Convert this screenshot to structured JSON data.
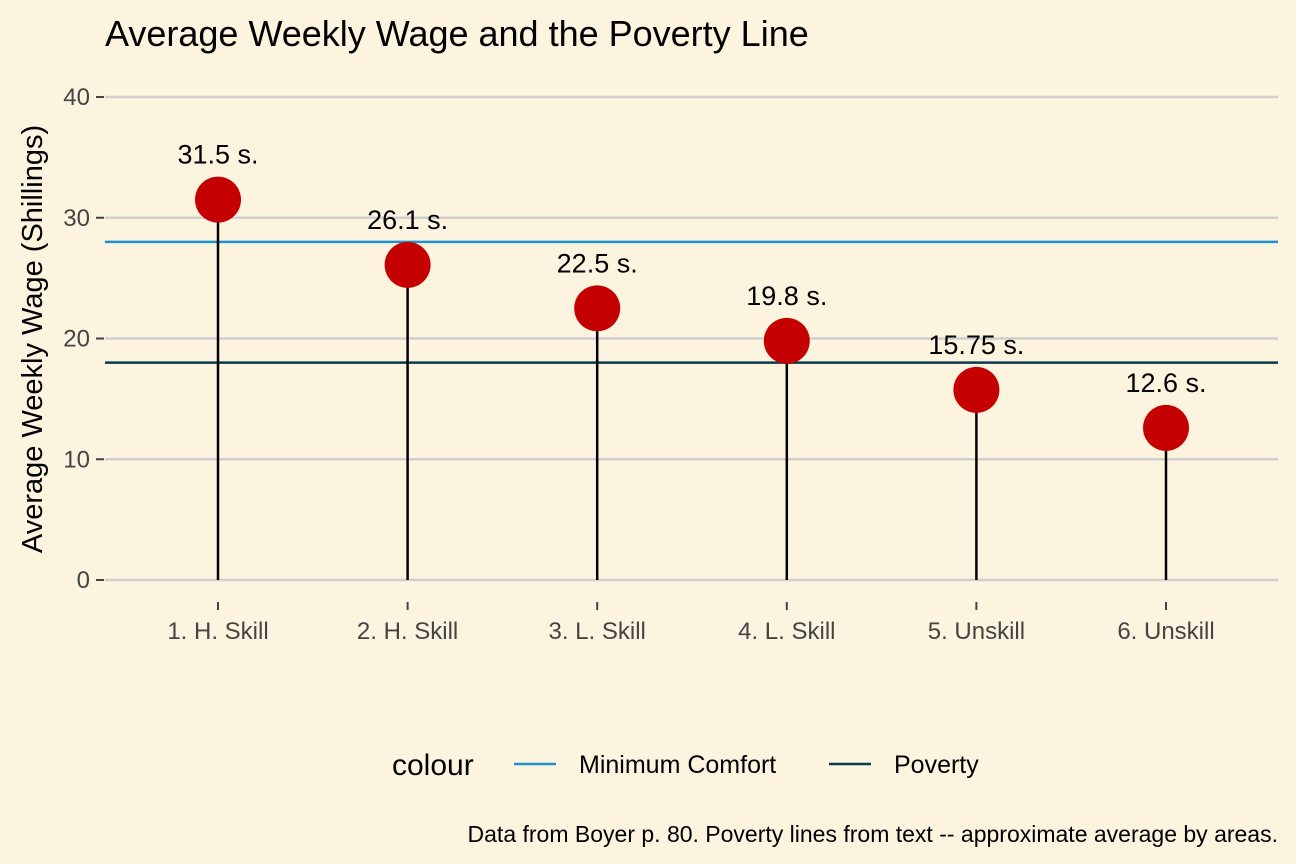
{
  "chart_data": {
    "type": "lollipop",
    "title": "Average Weekly Wage and the Poverty Line",
    "ylabel": "Average Weekly Wage (Shillings)",
    "xlabel": "",
    "ylim": [
      0,
      40
    ],
    "yticks": [
      0,
      10,
      20,
      30,
      40
    ],
    "grid": "horizontal",
    "categories": [
      "1. H. Skill",
      "2. H. Skill",
      "3. L. Skill",
      "4. L. Skill",
      "5. Unskill",
      "6. Unskill"
    ],
    "values": [
      31.5,
      26.1,
      22.5,
      19.8,
      15.75,
      12.6
    ],
    "data_labels": [
      "31.5 s.",
      "26.1 s.",
      "22.5 s.",
      "19.8 s.",
      "15.75 s.",
      "12.6 s."
    ],
    "point_color": "#c40000",
    "reference_lines": [
      {
        "name": "Minimum Comfort",
        "value": 28,
        "color": "#1f93d0"
      },
      {
        "name": "Poverty",
        "value": 18,
        "color": "#0a3a4e"
      }
    ],
    "legend": {
      "title": "colour",
      "position": "bottom"
    },
    "caption": "Data from Boyer p. 80. Poverty lines from text -- approximate average by areas."
  }
}
